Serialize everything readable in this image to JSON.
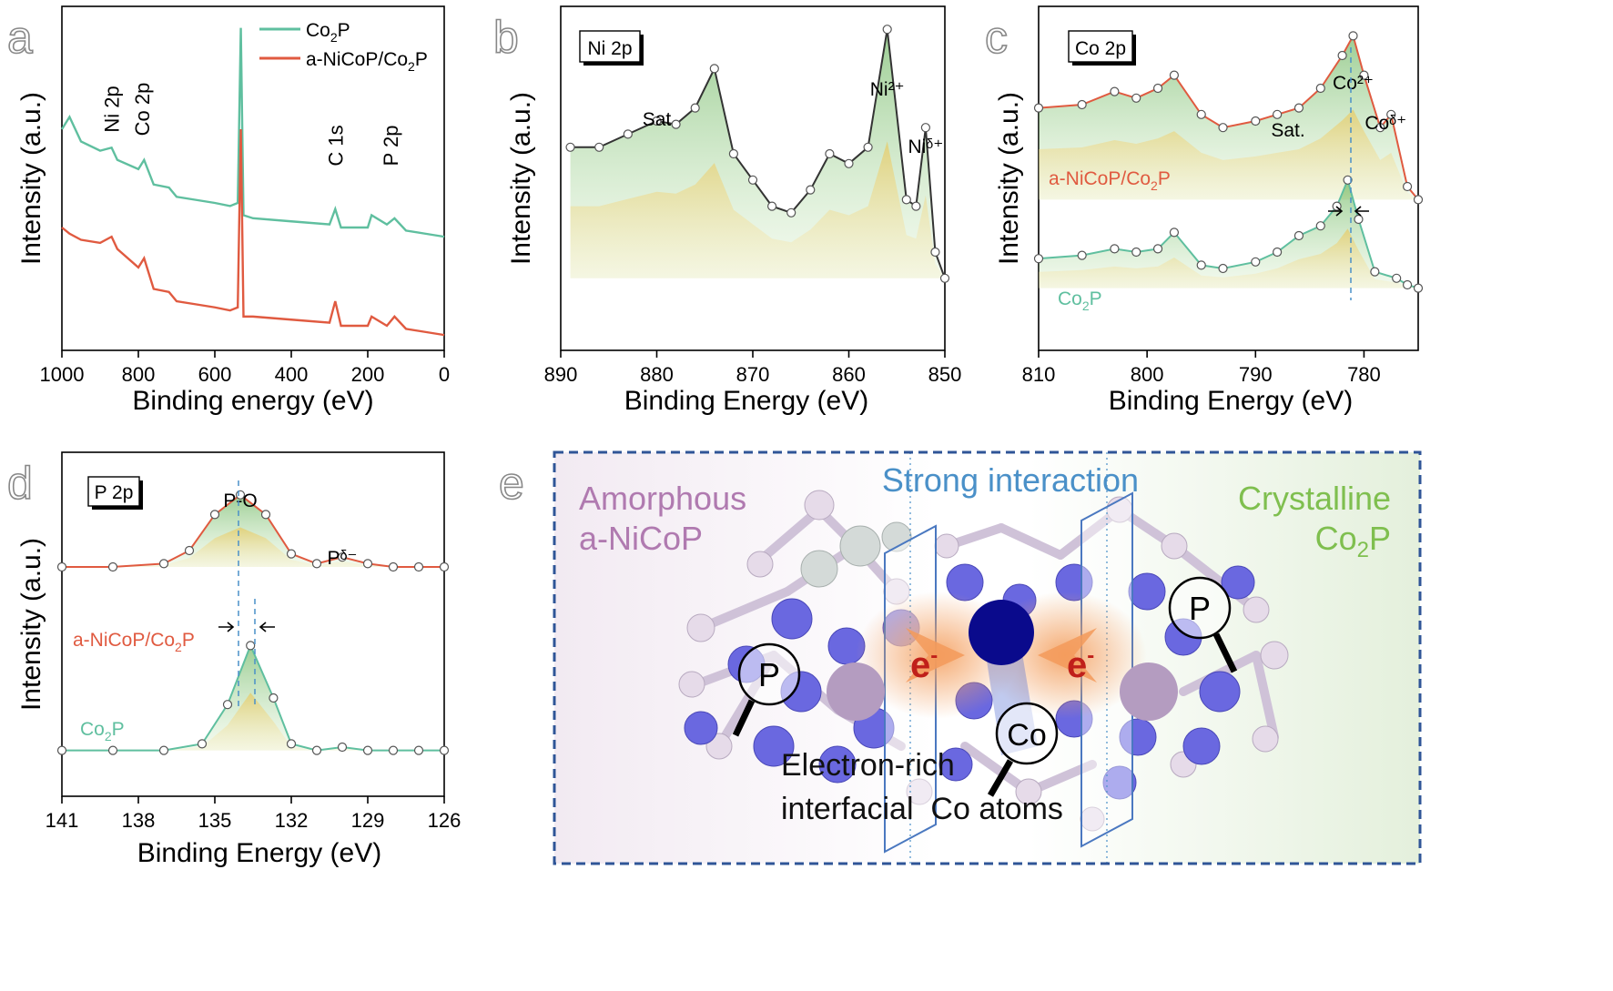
{
  "chart_data": [
    {
      "panel": "a",
      "type": "line",
      "xlabel": "Binding energy (eV)",
      "ylabel": "Intensity (a.u.)",
      "xlim": [
        1000,
        0
      ],
      "xticks": [
        "1000",
        "800",
        "600",
        "400",
        "200",
        "0"
      ],
      "legend": {
        "placement": "top-right",
        "entries": [
          "Co2P",
          "a-NiCoP/Co2P"
        ]
      },
      "peak_labels": [
        {
          "text": "Ni 2p",
          "x": 870
        },
        {
          "text": "Co 2p",
          "x": 790
        },
        {
          "text": "C 1s",
          "x": 285
        },
        {
          "text": "P 2p",
          "x": 140
        }
      ],
      "series": [
        {
          "name": "Co2P",
          "color": "#5fbf9f",
          "x": [
            1000,
            980,
            950,
            900,
            870,
            855,
            800,
            785,
            760,
            720,
            700,
            650,
            600,
            560,
            540,
            532,
            525,
            500,
            400,
            300,
            285,
            270,
            200,
            190,
            150,
            130,
            100,
            50,
            0
          ],
          "y": [
            0.62,
            0.66,
            0.58,
            0.55,
            0.56,
            0.52,
            0.49,
            0.52,
            0.44,
            0.43,
            0.4,
            0.39,
            0.38,
            0.37,
            0.38,
            0.95,
            0.34,
            0.33,
            0.32,
            0.31,
            0.36,
            0.3,
            0.3,
            0.34,
            0.31,
            0.33,
            0.29,
            0.28,
            0.27
          ]
        },
        {
          "name": "a-NiCoP/Co2P",
          "color": "#e05a40",
          "x": [
            1000,
            980,
            950,
            900,
            870,
            855,
            800,
            785,
            760,
            720,
            700,
            650,
            600,
            560,
            540,
            532,
            525,
            500,
            400,
            300,
            285,
            270,
            200,
            190,
            150,
            130,
            100,
            50,
            0
          ],
          "y": [
            0.3,
            0.28,
            0.26,
            0.25,
            0.27,
            0.23,
            0.17,
            0.2,
            0.1,
            0.09,
            0.06,
            0.05,
            0.04,
            0.03,
            0.04,
            0.62,
            0.01,
            0.01,
            0.0,
            -0.01,
            0.06,
            -0.02,
            -0.02,
            0.01,
            -0.02,
            0.01,
            -0.03,
            -0.04,
            -0.05
          ]
        }
      ]
    },
    {
      "panel": "b",
      "type": "area",
      "xlabel": "Binding Energy (eV)",
      "ylabel": "Intensity (a.u.)",
      "xlim": [
        890,
        850
      ],
      "xticks": [
        "890",
        "880",
        "870",
        "860",
        "850"
      ],
      "legend_box": "Ni 2p",
      "peak_labels": [
        {
          "text": "Sat",
          "x": 880
        },
        {
          "text": "Ni²⁺",
          "x": 856
        },
        {
          "text": "Niᵟ⁺",
          "x": 852
        }
      ],
      "series": [
        {
          "name": "",
          "color": "#333333",
          "x": [
            889,
            886,
            883,
            880,
            878,
            876,
            874,
            872,
            870,
            868,
            866,
            864,
            862,
            860,
            858,
            856,
            854,
            853,
            852,
            851,
            850
          ],
          "y": [
            0.62,
            0.62,
            0.66,
            0.7,
            0.69,
            0.74,
            0.86,
            0.6,
            0.52,
            0.44,
            0.42,
            0.49,
            0.6,
            0.57,
            0.62,
            0.98,
            0.46,
            0.44,
            0.68,
            0.3,
            0.22
          ]
        }
      ]
    },
    {
      "panel": "c",
      "type": "area",
      "xlabel": "Binding Energy (eV)",
      "ylabel": "Intensity (a.u.)",
      "xlim": [
        810,
        775
      ],
      "xticks": [
        "810",
        "800",
        "790",
        "780"
      ],
      "legend_box": "Co 2p",
      "peak_labels": [
        {
          "text": "Co²⁺",
          "x": 781
        },
        {
          "text": "Coᵟ⁺",
          "x": 778
        },
        {
          "text": "Sat.",
          "x": 787
        }
      ],
      "series": [
        {
          "name": "a-NiCoP/Co2P",
          "color": "#e05a40",
          "x": [
            810,
            806,
            803,
            801,
            799,
            797.5,
            795,
            793,
            790,
            788,
            786,
            784,
            782,
            781,
            780,
            778.5,
            777.5,
            776,
            775
          ],
          "y": [
            0.74,
            0.75,
            0.79,
            0.77,
            0.8,
            0.84,
            0.72,
            0.68,
            0.7,
            0.72,
            0.74,
            0.8,
            0.9,
            0.96,
            0.84,
            0.68,
            0.72,
            0.5,
            0.46
          ]
        },
        {
          "name": "Co2P",
          "color": "#5fbf9f",
          "x": [
            810,
            806,
            803,
            801,
            799,
            797.5,
            795,
            793,
            790,
            788,
            786,
            784,
            782.5,
            781.5,
            780.5,
            779,
            777,
            776,
            775
          ],
          "y": [
            0.28,
            0.29,
            0.31,
            0.3,
            0.31,
            0.36,
            0.26,
            0.25,
            0.27,
            0.3,
            0.35,
            0.38,
            0.44,
            0.52,
            0.4,
            0.24,
            0.22,
            0.2,
            0.19
          ]
        }
      ]
    },
    {
      "panel": "d",
      "type": "area",
      "xlabel": "Binding Energy (eV)",
      "ylabel": "Intensity (a.u.)",
      "xlim": [
        141,
        126
      ],
      "xticks": [
        "141",
        "138",
        "135",
        "132",
        "129",
        "126"
      ],
      "legend_box": "P 2p",
      "peak_labels": [
        {
          "text": "P-O",
          "x": 134
        },
        {
          "text": "Pᵟ⁻",
          "x": 130
        }
      ],
      "series": [
        {
          "name": "a-NiCoP/Co2P",
          "color": "#e05a40",
          "x": [
            141,
            139,
            137,
            136,
            135,
            134,
            133,
            132,
            131,
            130,
            129,
            128,
            127,
            126
          ],
          "y": [
            0.7,
            0.7,
            0.71,
            0.75,
            0.86,
            0.92,
            0.86,
            0.74,
            0.71,
            0.73,
            0.71,
            0.7,
            0.7,
            0.7
          ]
        },
        {
          "name": "Co2P",
          "color": "#5fbf9f",
          "x": [
            141,
            139,
            137,
            135.5,
            134.5,
            133.6,
            132.7,
            132,
            131,
            130,
            129,
            128,
            127,
            126
          ],
          "y": [
            0.14,
            0.14,
            0.14,
            0.16,
            0.28,
            0.46,
            0.3,
            0.16,
            0.14,
            0.15,
            0.14,
            0.14,
            0.14,
            0.14
          ]
        }
      ]
    }
  ],
  "panel_labels": [
    "a",
    "b",
    "c",
    "d",
    "e"
  ],
  "labels": {
    "a_legend_co2p": "Co",
    "a_legend_co2p_sub": "2",
    "a_legend_co2p_tail": "P",
    "a_legend_hetero": "a-NiCoP/Co",
    "a_legend_hetero_sub": "2",
    "a_legend_hetero_tail": "P",
    "c_hetero": "a-NiCoP/Co",
    "c_hetero_sub": "2",
    "c_hetero_tail": "P",
    "c_co2p": "Co",
    "c_co2p_sub": "2",
    "c_co2p_tail": "P",
    "d_hetero": "a-NiCoP/Co",
    "d_hetero_sub": "2",
    "d_hetero_tail": "P",
    "d_co2p": "Co",
    "d_co2p_sub": "2",
    "d_co2p_tail": "P"
  },
  "panel_e": {
    "title": "Strong interaction",
    "left_label_1": "Amorphous",
    "left_label_2": "a-NiCoP",
    "right_label_1": "Crystalline",
    "right_label_2": "Co",
    "right_label_2_sub": "2",
    "right_label_2_tail": "P",
    "electron": "e",
    "electron_sup": "-",
    "magnifier_left": "P",
    "magnifier_right": "P",
    "magnifier_co": "Co",
    "caption_1": "Electron-rich",
    "caption_2": "interfacial  Co atoms",
    "colors": {
      "amorphous": "#b07ab0",
      "crystalline": "#7fbf4f",
      "interaction": "#4a90c8",
      "electron": "#c0201a",
      "frame": "#2f5597"
    }
  }
}
